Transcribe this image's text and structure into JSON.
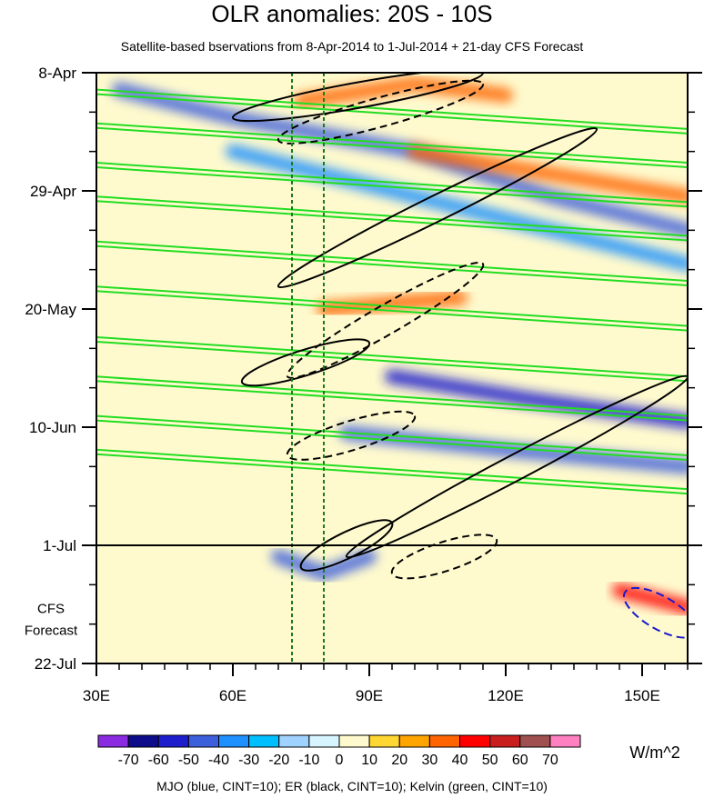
{
  "chart_data": {
    "type": "heatmap",
    "title": "OLR anomalies: 20S - 10S",
    "subtitle": "Satellite-based bservations from 8-Apr-2014 to 1-Jul-2014 + 21-day CFS Forecast",
    "x_ticks": [
      {
        "label": "30E",
        "lon": 30
      },
      {
        "label": "60E",
        "lon": 60
      },
      {
        "label": "90E",
        "lon": 90
      },
      {
        "label": "120E",
        "lon": 120
      },
      {
        "label": "150E",
        "lon": 150
      }
    ],
    "xlim": [
      30,
      160
    ],
    "y_ticks": [
      {
        "label": "8-Apr",
        "day": 0
      },
      {
        "label": "29-Apr",
        "day": 21
      },
      {
        "label": "20-May",
        "day": 42
      },
      {
        "label": "10-Jun",
        "day": 63
      },
      {
        "label": "1-Jul",
        "day": 84
      },
      {
        "label": "22-Jul",
        "day": 105
      }
    ],
    "ylim_days": [
      0,
      105
    ],
    "forecast_start_day": 84,
    "forecast_label": [
      "CFS",
      "Forecast"
    ],
    "reference_lons": [
      73,
      80
    ],
    "colorbar": {
      "levels": [
        "-70",
        "-60",
        "-50",
        "-40",
        "-30",
        "-20",
        "-10",
        "0",
        "10",
        "20",
        "30",
        "40",
        "50",
        "60",
        "70"
      ],
      "colors": [
        "#8a2be2",
        "#0d0d8c",
        "#1e1ecd",
        "#3c5fdc",
        "#1e90ff",
        "#00bfff",
        "#a0d2ff",
        "#d7f5ff",
        "#fffacd",
        "#ffd732",
        "#ffa500",
        "#ff6400",
        "#ff0000",
        "#c81e1e",
        "#a05050",
        "#ff80c0"
      ],
      "units": "W/m^2"
    },
    "anomaly_bands": [
      {
        "sign": "negative",
        "value": -50,
        "path_days": [
          [
            35,
            3
          ],
          [
            60,
            8
          ],
          [
            100,
            14
          ],
          [
            130,
            22
          ],
          [
            160,
            28
          ]
        ]
      },
      {
        "sign": "negative",
        "value": -40,
        "path_days": [
          [
            60,
            14
          ],
          [
            95,
            21
          ],
          [
            130,
            28
          ],
          [
            160,
            34
          ]
        ]
      },
      {
        "sign": "negative",
        "value": -60,
        "path_days": [
          [
            95,
            54
          ],
          [
            125,
            58
          ],
          [
            160,
            62
          ]
        ]
      },
      {
        "sign": "negative",
        "value": -50,
        "path_days": [
          [
            85,
            64
          ],
          [
            120,
            67
          ],
          [
            160,
            70
          ]
        ]
      },
      {
        "sign": "negative",
        "value": -50,
        "path_days": [
          [
            70,
            86
          ],
          [
            80,
            89
          ],
          [
            90,
            86
          ]
        ]
      },
      {
        "sign": "positive",
        "value": 30,
        "path_days": [
          [
            75,
            5
          ],
          [
            100,
            2
          ],
          [
            120,
            4
          ]
        ]
      },
      {
        "sign": "positive",
        "value": 30,
        "path_days": [
          [
            100,
            14
          ],
          [
            130,
            18
          ],
          [
            160,
            22
          ]
        ]
      },
      {
        "sign": "positive",
        "value": 30,
        "path_days": [
          [
            80,
            42
          ],
          [
            110,
            40
          ]
        ]
      },
      {
        "sign": "positive",
        "value": 40,
        "path_days": [
          [
            145,
            92
          ],
          [
            160,
            95
          ]
        ]
      }
    ],
    "contour_series": [
      {
        "name": "MJO (blue, CINT=10)",
        "color": "#1a1acc"
      },
      {
        "name": "ER (black, CINT=10)",
        "color": "#000000"
      },
      {
        "name": "Kelvin (green, CINT=10)",
        "color": "#22dd22"
      }
    ]
  },
  "caption": "MJO (blue, CINT=10); ER (black, CINT=10); Kelvin (green, CINT=10)"
}
